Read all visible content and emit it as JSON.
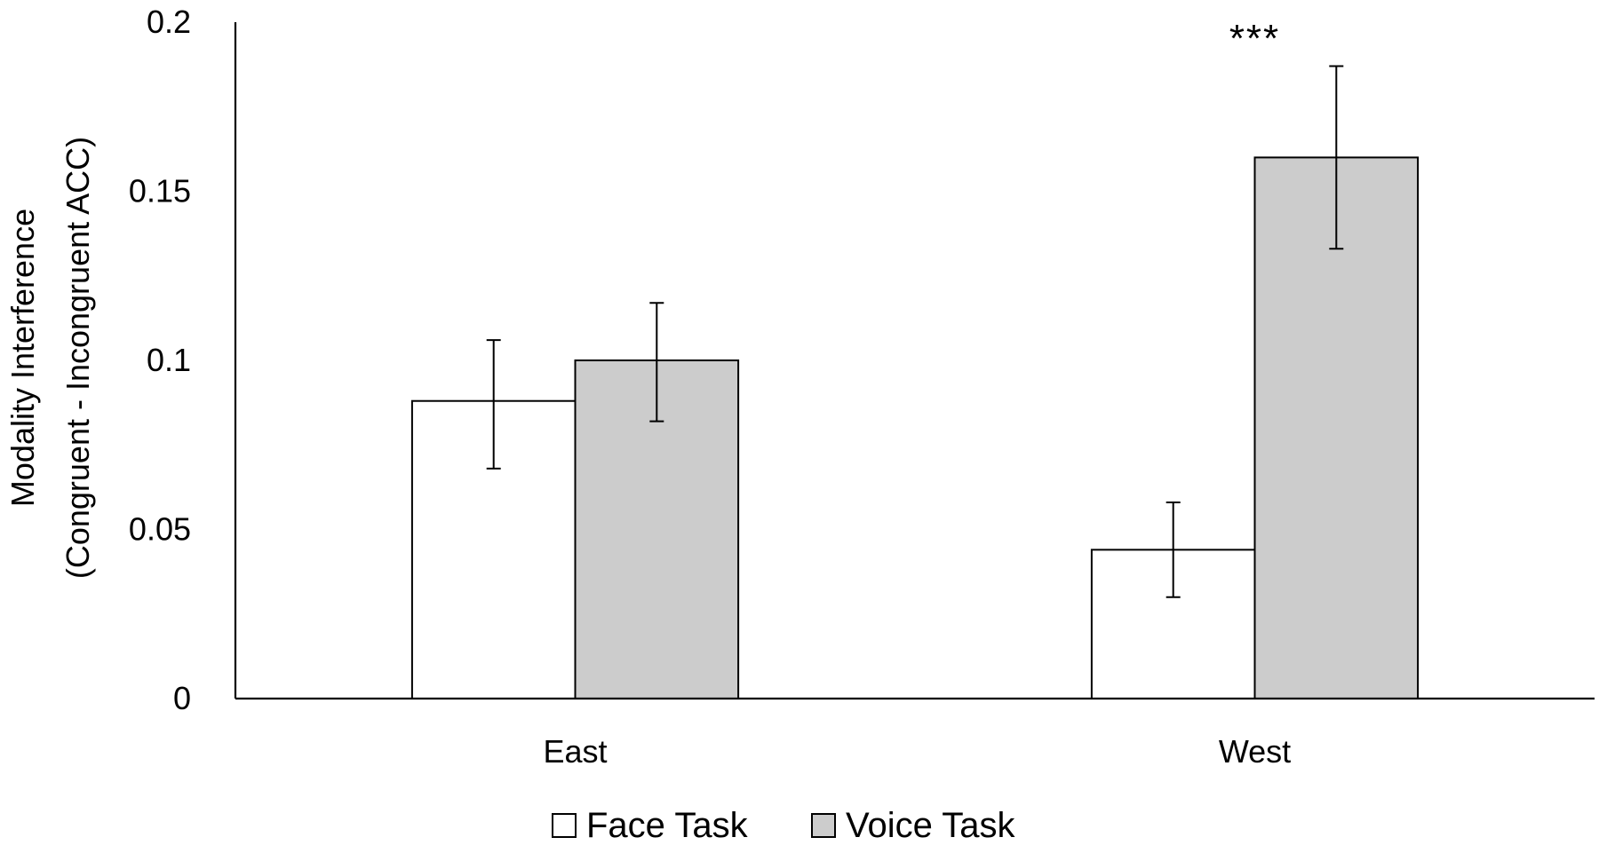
{
  "chart_data": {
    "type": "bar",
    "title": "",
    "xlabel": "",
    "ylabel": "Modality Interference",
    "ylabel_line2": "(Congruent - Incongruent ACC)",
    "ylim": [
      0,
      0.2
    ],
    "yticks": [
      "0",
      "0.05",
      "0.1",
      "0.15",
      "0.2"
    ],
    "ytick_values": [
      0,
      0.05,
      0.1,
      0.15,
      0.2
    ],
    "categories": [
      "East",
      "West"
    ],
    "series": [
      {
        "name": "Face Task",
        "color": "#ffffff",
        "values": [
          0.088,
          0.044
        ],
        "error_low": [
          0.068,
          0.03
        ],
        "error_high": [
          0.106,
          0.058
        ]
      },
      {
        "name": "Voice Task",
        "color": "#cccccc",
        "values": [
          0.1,
          0.16
        ],
        "error_low": [
          0.082,
          0.133
        ],
        "error_high": [
          0.117,
          0.187
        ]
      }
    ],
    "annotations": [
      {
        "text": "***",
        "category": "West"
      }
    ],
    "legend": {
      "placement": "bottom"
    },
    "grid": false
  }
}
